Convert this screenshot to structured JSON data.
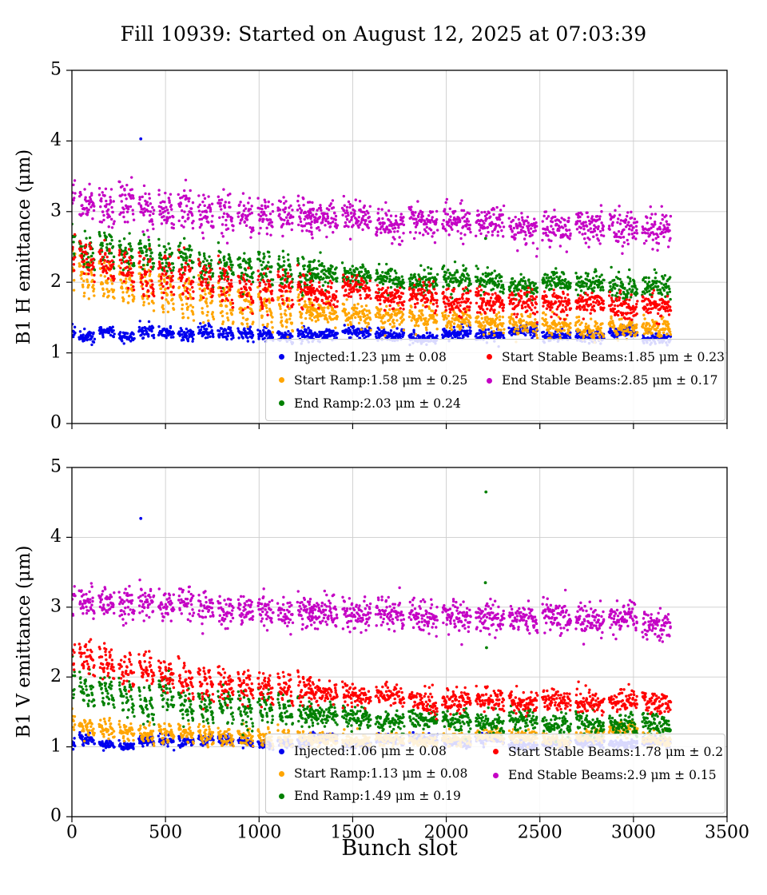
{
  "title": "Fill 10939: Started on August 12, 2025 at 07:03:39",
  "xlabel": "Bunch slot",
  "chart_data": [
    {
      "type": "scatter",
      "title": "",
      "ylabel": "B1 H emittance (μm)",
      "xlabel": "",
      "xlim": [
        0,
        3500
      ],
      "ylim": [
        0,
        5
      ],
      "xticks": [
        0,
        500,
        1000,
        1500,
        2000,
        2500,
        3000,
        3500
      ],
      "yticks": [
        0,
        1,
        2,
        3,
        4,
        5
      ],
      "grid": true,
      "legend_loc": "lower center",
      "legend_columns": 2,
      "series": [
        {
          "name": "Injected",
          "label": "Injected:1.23 μm ± 0.08",
          "mean": 1.23,
          "std": 0.08,
          "color": "#0000ee",
          "trend": {
            "y_start": 1.27,
            "y_end": 1.21,
            "tau": 2500
          },
          "spread": 0.04,
          "train_slope": 0.06,
          "outliers": [
            [
              368,
              4.03
            ]
          ]
        },
        {
          "name": "Start Ramp",
          "label": "Start Ramp:1.58 μm ± 0.25",
          "mean": 1.58,
          "std": 0.25,
          "color": "#ffa500",
          "trend": {
            "y_start": 2.18,
            "y_end": 1.28,
            "tau": 1150
          },
          "spread": 0.065,
          "train_slope": 0.5,
          "outliers": []
        },
        {
          "name": "End Ramp",
          "label": "End Ramp:2.03 μm ± 0.24",
          "mean": 2.03,
          "std": 0.24,
          "color": "#008000",
          "trend": {
            "y_start": 2.52,
            "y_end": 1.93,
            "tau": 1200
          },
          "spread": 0.08,
          "train_slope": 0.35,
          "outliers": [
            [
              2210,
              2.62
            ]
          ]
        },
        {
          "name": "Start Stable Beams",
          "label": "Start Stable Beams:1.85 μm ± 0.23",
          "mean": 1.85,
          "std": 0.23,
          "color": "#ff0000",
          "trend": {
            "y_start": 2.35,
            "y_end": 1.65,
            "tau": 1100
          },
          "spread": 0.08,
          "train_slope": 0.45,
          "outliers": []
        },
        {
          "name": "End Stable Beams",
          "label": "End Stable Beams:2.85 μm ± 0.17",
          "mean": 2.85,
          "std": 0.17,
          "color": "#c400c4",
          "trend": {
            "y_start": 3.12,
            "y_end": 2.7,
            "tau": 1800
          },
          "spread": 0.12,
          "train_slope": 0.25,
          "outliers": []
        }
      ]
    },
    {
      "type": "scatter",
      "title": "",
      "ylabel": "B1 V emittance (μm)",
      "xlabel": "Bunch slot",
      "xlim": [
        0,
        3500
      ],
      "ylim": [
        0,
        5
      ],
      "xticks": [
        0,
        500,
        1000,
        1500,
        2000,
        2500,
        3000,
        3500
      ],
      "yticks": [
        0,
        1,
        2,
        3,
        4,
        5
      ],
      "grid": true,
      "legend_loc": "lower center",
      "legend_columns": 2,
      "series": [
        {
          "name": "Injected",
          "label": "Injected:1.06 μm ± 0.08",
          "mean": 1.06,
          "std": 0.08,
          "color": "#0000ee",
          "trend": {
            "y_start": 1.08,
            "y_end": 1.04,
            "tau": 3000
          },
          "spread": 0.035,
          "train_slope": 0.06,
          "outliers": [
            [
              368,
              4.27
            ]
          ]
        },
        {
          "name": "Start Ramp",
          "label": "Start Ramp:1.13 μm ± 0.08",
          "mean": 1.13,
          "std": 0.08,
          "color": "#ffa500",
          "trend": {
            "y_start": 1.28,
            "y_end": 1.1,
            "tau": 700
          },
          "spread": 0.045,
          "train_slope": 0.2,
          "outliers": []
        },
        {
          "name": "End Ramp",
          "label": "End Ramp:1.49 μm ± 0.19",
          "mean": 1.49,
          "std": 0.19,
          "color": "#008000",
          "trend": {
            "y_start": 1.85,
            "y_end": 1.3,
            "tau": 1000
          },
          "spread": 0.07,
          "train_slope": 0.4,
          "outliers": [
            [
              2212,
              4.65
            ],
            [
              2209,
              3.35
            ],
            [
              2215,
              2.42
            ]
          ]
        },
        {
          "name": "Start Stable Beams",
          "label": "Start Stable Beams:1.78 μm ± 0.2",
          "mean": 1.78,
          "std": 0.2,
          "color": "#ff0000",
          "trend": {
            "y_start": 2.3,
            "y_end": 1.57,
            "tau": 1100
          },
          "spread": 0.075,
          "train_slope": 0.35,
          "outliers": []
        },
        {
          "name": "End Stable Beams",
          "label": "End Stable Beams:2.9 μm ± 0.15",
          "mean": 2.9,
          "std": 0.15,
          "color": "#c400c4",
          "trend": {
            "y_start": 3.12,
            "y_end": 2.74,
            "tau": 1700
          },
          "spread": 0.11,
          "train_slope": 0.15,
          "outliers": []
        }
      ]
    }
  ]
}
